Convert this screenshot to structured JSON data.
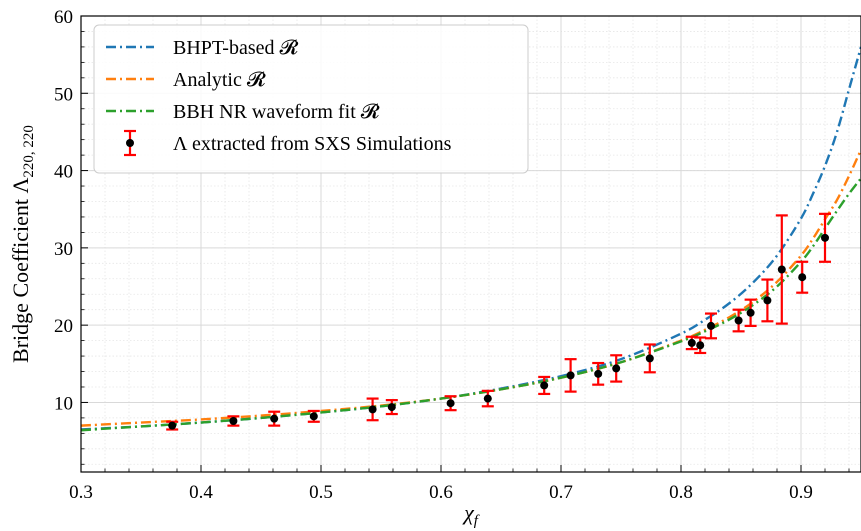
{
  "chart_data": {
    "type": "line",
    "xlabel": "χ_f",
    "ylabel": "Bridge Coefficient Λ_{220, 220}",
    "xlim": [
      0.3,
      0.95
    ],
    "ylim": [
      1,
      60
    ],
    "xticks": [
      0.3,
      0.4,
      0.5,
      0.6,
      0.7,
      0.8,
      0.9
    ],
    "xtick_labels": [
      "0.3",
      "0.4",
      "0.5",
      "0.6",
      "0.7",
      "0.8",
      "0.9"
    ],
    "yticks": [
      10,
      20,
      30,
      40,
      50,
      60
    ],
    "ytick_labels": [
      "10",
      "20",
      "30",
      "40",
      "50",
      "60"
    ],
    "grid": true,
    "minor_grid": true,
    "legend_position": "top-left",
    "series": [
      {
        "name": "BHPT-based 𝓡",
        "style": "dash-dot",
        "color": "#1f77b4",
        "x": [
          0.3,
          0.35,
          0.4,
          0.45,
          0.5,
          0.55,
          0.6,
          0.65,
          0.7,
          0.75,
          0.8,
          0.82,
          0.84,
          0.86,
          0.88,
          0.9,
          0.91,
          0.92,
          0.93,
          0.94,
          0.95
        ],
        "y": [
          6.5,
          6.9,
          7.4,
          8.0,
          8.7,
          9.5,
          10.5,
          11.8,
          13.4,
          15.6,
          18.9,
          20.7,
          22.8,
          25.5,
          29.0,
          33.8,
          37.0,
          40.6,
          45.0,
          50.5,
          56.0
        ]
      },
      {
        "name": "Analytic 𝓡",
        "style": "dash-dot",
        "color": "#ff7f0e",
        "x": [
          0.3,
          0.35,
          0.4,
          0.45,
          0.5,
          0.55,
          0.6,
          0.65,
          0.7,
          0.75,
          0.8,
          0.82,
          0.84,
          0.86,
          0.88,
          0.9,
          0.91,
          0.92,
          0.93,
          0.94,
          0.95
        ],
        "y": [
          7.0,
          7.4,
          7.8,
          8.3,
          8.9,
          9.6,
          10.5,
          11.7,
          13.2,
          15.2,
          18.0,
          19.4,
          21.0,
          23.0,
          25.6,
          29.0,
          31.2,
          33.7,
          36.2,
          39.3,
          42.7
        ]
      },
      {
        "name": "BBH NR waveform fit 𝓡",
        "style": "dash-dot",
        "color": "#2ca02c",
        "x": [
          0.3,
          0.35,
          0.4,
          0.45,
          0.5,
          0.55,
          0.6,
          0.65,
          0.7,
          0.75,
          0.8,
          0.82,
          0.84,
          0.86,
          0.88,
          0.9,
          0.91,
          0.92,
          0.93,
          0.94,
          0.95
        ],
        "y": [
          6.4,
          6.9,
          7.4,
          8.0,
          8.7,
          9.5,
          10.5,
          11.7,
          13.2,
          15.2,
          17.9,
          19.2,
          20.7,
          22.6,
          25.0,
          28.2,
          30.2,
          32.5,
          34.8,
          37.0,
          39.0
        ]
      }
    ],
    "errorbar_series": {
      "name": "Λ extracted from SXS Simulations",
      "marker_color": "#000000",
      "error_color": "#ff0000",
      "points": [
        {
          "x": 0.376,
          "y": 7.0,
          "err": 0.5
        },
        {
          "x": 0.427,
          "y": 7.6,
          "err": 0.6
        },
        {
          "x": 0.461,
          "y": 7.9,
          "err": 0.9
        },
        {
          "x": 0.494,
          "y": 8.2,
          "err": 0.7
        },
        {
          "x": 0.543,
          "y": 9.1,
          "err": 1.4
        },
        {
          "x": 0.559,
          "y": 9.4,
          "err": 0.9
        },
        {
          "x": 0.608,
          "y": 9.9,
          "err": 0.9
        },
        {
          "x": 0.639,
          "y": 10.5,
          "err": 1.0
        },
        {
          "x": 0.686,
          "y": 12.2,
          "err": 1.1
        },
        {
          "x": 0.708,
          "y": 13.5,
          "err": 2.1
        },
        {
          "x": 0.731,
          "y": 13.7,
          "err": 1.4
        },
        {
          "x": 0.746,
          "y": 14.4,
          "err": 1.7
        },
        {
          "x": 0.774,
          "y": 15.7,
          "err": 1.8
        },
        {
          "x": 0.809,
          "y": 17.7,
          "err": 0.8
        },
        {
          "x": 0.816,
          "y": 17.4,
          "err": 1.0
        },
        {
          "x": 0.825,
          "y": 19.9,
          "err": 1.6
        },
        {
          "x": 0.848,
          "y": 20.6,
          "err": 1.4
        },
        {
          "x": 0.858,
          "y": 21.6,
          "err": 1.7
        },
        {
          "x": 0.872,
          "y": 23.2,
          "err": 2.7
        },
        {
          "x": 0.884,
          "y": 27.2,
          "err": 7.0
        },
        {
          "x": 0.901,
          "y": 26.2,
          "err": 2.0
        },
        {
          "x": 0.92,
          "y": 31.3,
          "err": 3.1
        }
      ]
    }
  }
}
